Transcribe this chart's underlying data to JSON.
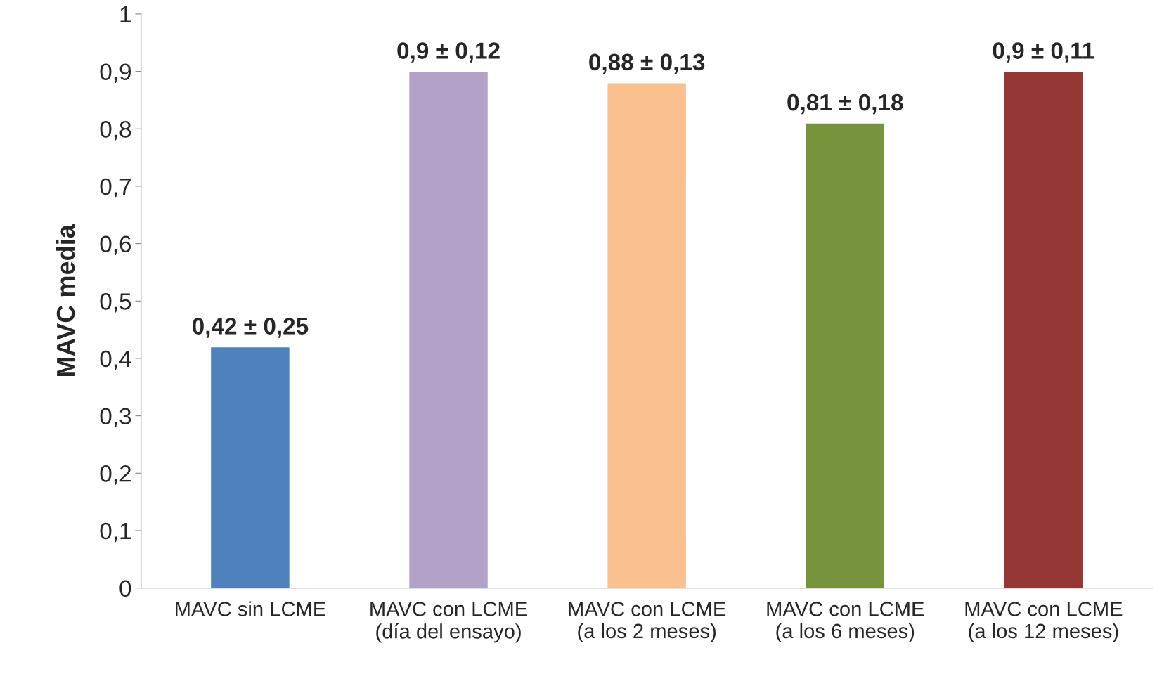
{
  "chart_data": {
    "type": "bar",
    "ylabel": "MAVC media",
    "categories": [
      "MAVC sin LCME",
      "MAVC con LCME\n(día del ensayo)",
      "MAVC con LCME\n(a los 2 meses)",
      "MAVC con LCME\n(a los 6 meses)",
      "MAVC con LCME\n(a los 12 meses)"
    ],
    "values": [
      0.42,
      0.9,
      0.88,
      0.81,
      0.9
    ],
    "colors": [
      "#4f81bd",
      "#b3a2c7",
      "#fac090",
      "#77933c",
      "#953735"
    ],
    "value_labels": [
      "0,42 ± 0,25",
      "0,9 ± 0,12",
      "0,88 ± 0,13",
      "0,81 ± 0,18",
      "0,9 ± 0,11"
    ],
    "ylim": [
      0,
      1
    ],
    "yticks": [
      0,
      {
        "value": 0.1,
        "label": "0,1"
      },
      {
        "value": 0.2,
        "label": "0,2"
      },
      {
        "value": 0.3,
        "label": "0,3"
      },
      {
        "value": 0.4,
        "label": "0,4"
      },
      {
        "value": 0.5,
        "label": "0,5"
      },
      {
        "value": 0.6,
        "label": "0,6"
      },
      {
        "value": 0.7,
        "label": "0,7"
      },
      {
        "value": 0.8,
        "label": "0,8"
      },
      {
        "value": 0.9,
        "label": "0,9"
      },
      1
    ],
    "grid": false,
    "legend": false
  }
}
